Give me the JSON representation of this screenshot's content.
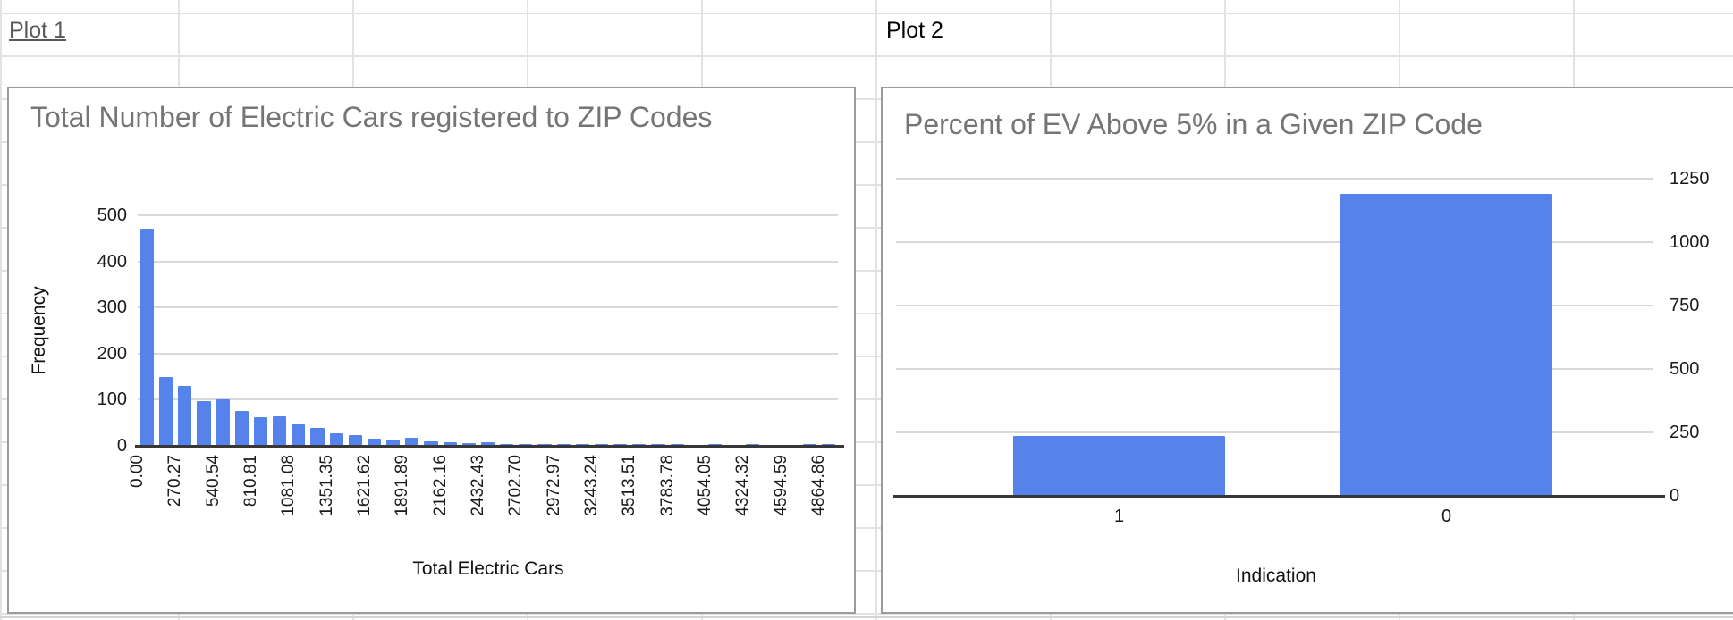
{
  "sheet": {
    "plot1_label": "Plot 1",
    "plot2_label": "Plot 2"
  },
  "colors": {
    "bar_blue": "#5583eb",
    "title_gray": "#757575",
    "axis_dark": "#373737",
    "chart_gridline": "#d9d9d9",
    "sheet_gridline": "#e2e2e2"
  },
  "chart_data": [
    {
      "type": "bar",
      "title": "Total Number of Electric Cars registered to ZIP Codes",
      "xlabel": "Total Electric Cars",
      "ylabel": "Frequency",
      "ylim": [
        0,
        500
      ],
      "y_ticks": [
        0,
        100,
        200,
        300,
        400,
        500
      ],
      "x_tick_labels": [
        "0.00",
        "270.27",
        "540.54",
        "810.81",
        "1081.08",
        "1351.35",
        "1621.62",
        "1891.89",
        "2162.16",
        "2432.43",
        "2702.70",
        "2972.97",
        "3243.24",
        "3513.51",
        "3783.78",
        "4054.05",
        "4324.32",
        "4594.59",
        "4864.86"
      ],
      "x_tick_interval": 270.27,
      "values": [
        470,
        150,
        130,
        97,
        101,
        76,
        62,
        63,
        46,
        39,
        27,
        23,
        16,
        13,
        18,
        10,
        8,
        5,
        8,
        3,
        4,
        2,
        3,
        2,
        2,
        3,
        1,
        1,
        2,
        0,
        1,
        0,
        2,
        0,
        0,
        1,
        1
      ],
      "grid": true,
      "legend": "none"
    },
    {
      "type": "bar",
      "title": "Percent of EV Above 5% in a Given ZIP Code",
      "xlabel": "Indication",
      "ylabel": "",
      "categories": [
        "1",
        "0"
      ],
      "values": [
        235,
        1190
      ],
      "ylim": [
        0,
        1250
      ],
      "y_ticks": [
        0,
        250,
        500,
        750,
        1000,
        1250
      ],
      "y_axis_side": "right",
      "grid": true,
      "legend": "none"
    }
  ]
}
